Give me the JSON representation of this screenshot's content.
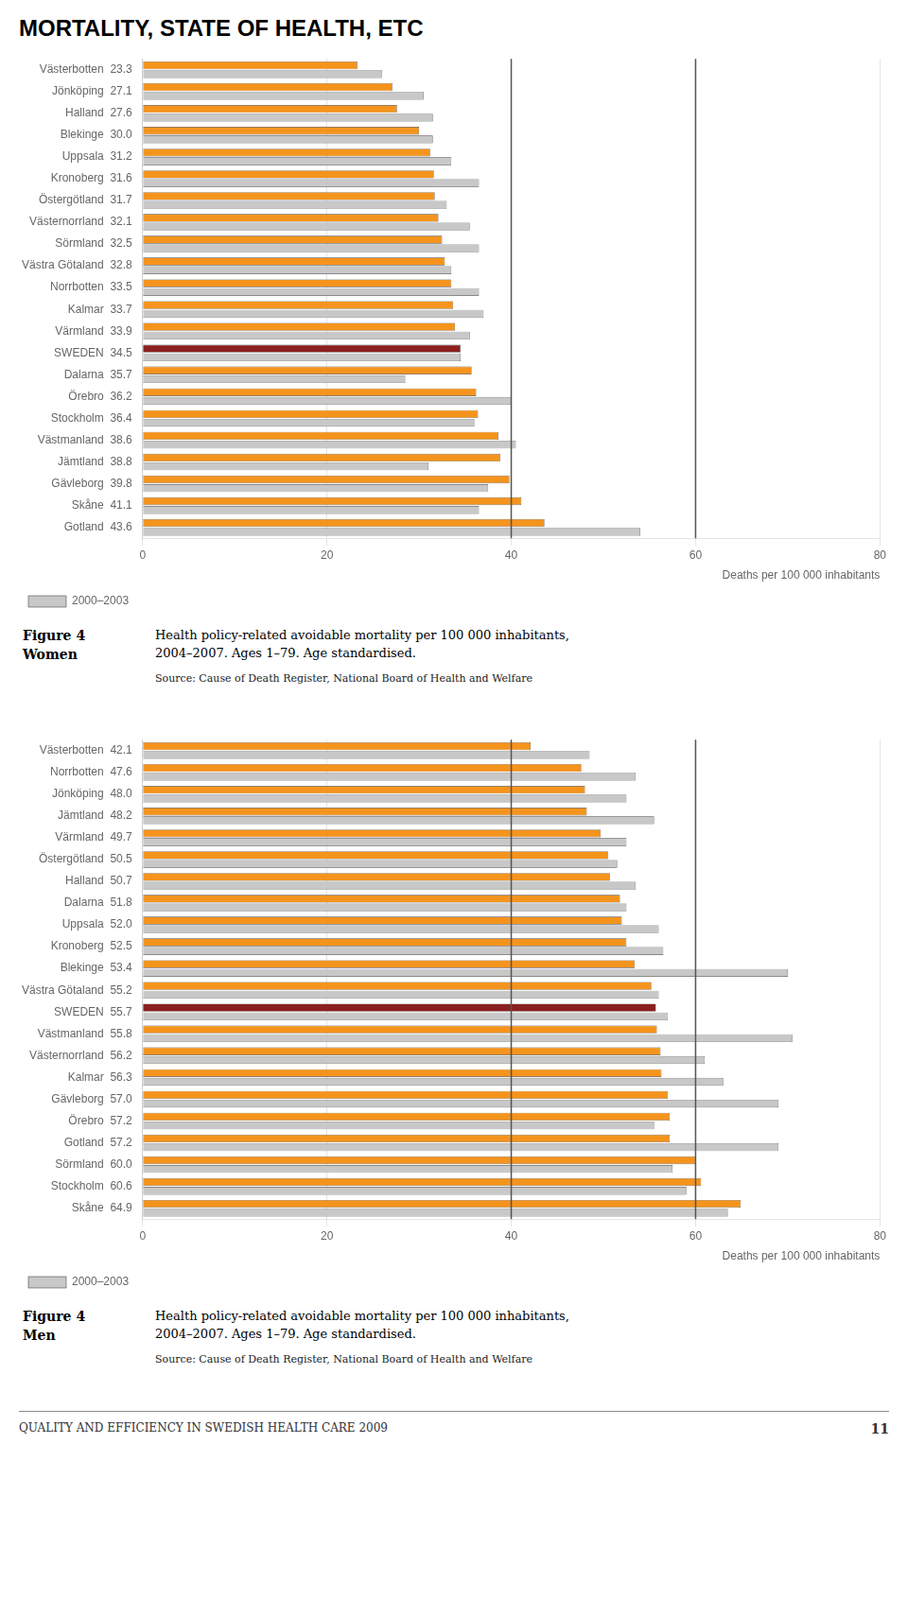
{
  "page_title": "MORTALITY, STATE OF HEALTH, ETC",
  "footer_text": "QUALITY AND EFFICIENCY IN SWEDISH HEALTH CARE 2009",
  "footer_right": "11",
  "chart_data": [
    {
      "type": "bar",
      "orientation": "horizontal",
      "annotations": [
        "Figure 4",
        "Women",
        "Health policy-related avoidable mortality per 100 000 inhabitants,\n2004–2007. Ages 1–79. Age standardised.",
        "Source: Cause of Death Register, National Board of Health and Welfare"
      ],
      "categories": [
        "Västerbotten  23.3",
        "Jönköping  27.1",
        "Halland  27.6",
        "Blekinge  30.0",
        "Uppsala  31.2",
        "Kronoberg  31.6",
        "Östergötland  31.7",
        "Västernorrland  32.1",
        "Sörmland  32.5",
        "Västra Götaland  32.8",
        "Norrbotten  33.5",
        "Kalmar  33.7",
        "Värmland  33.9",
        "SWEDEN  34.5",
        "Dalarna  35.7",
        "Örebro  36.2",
        "Stockholm  36.4",
        "Västmanland  38.6",
        "Jämtland  38.8",
        "Gävleborg  39.8",
        "Skåne  41.1",
        "Gotland  43.6"
      ],
      "series": [
        {
          "values": [
            23.3,
            27.1,
            27.6,
            30.0,
            31.2,
            31.6,
            31.7,
            32.1,
            32.5,
            32.8,
            33.5,
            33.7,
            33.9,
            34.5,
            35.7,
            36.2,
            36.4,
            38.6,
            38.8,
            39.8,
            41.1,
            43.6
          ],
          "colors": [
            "#f5941d",
            "#f5941d",
            "#f5941d",
            "#f5941d",
            "#f5941d",
            "#f5941d",
            "#f5941d",
            "#f5941d",
            "#f5941d",
            "#f5941d",
            "#f5941d",
            "#f5941d",
            "#f5941d",
            "#8b2020",
            "#f5941d",
            "#f5941d",
            "#f5941d",
            "#f5941d",
            "#f5941d",
            "#f5941d",
            "#f5941d",
            "#f5941d"
          ]
        },
        {
          "name": "2000–2003",
          "color": "#c8c8c8",
          "values": [
            26.0,
            30.5,
            31.5,
            31.5,
            33.5,
            36.5,
            33.0,
            35.5,
            36.5,
            33.5,
            36.5,
            37.0,
            35.5,
            34.5,
            28.5,
            40.0,
            36.0,
            40.5,
            31.0,
            37.5,
            36.5,
            54.0
          ]
        }
      ],
      "xlabel": "Deaths per 100 000 inhabitants",
      "xlim": [
        0,
        80
      ],
      "xticks": [
        0,
        20,
        40,
        60,
        80
      ],
      "grid": true,
      "legend": "lower left",
      "reference_lines": [
        {
          "x": 40,
          "color": "#555555"
        },
        {
          "x": 60,
          "color": "#555555"
        }
      ]
    },
    {
      "type": "bar",
      "orientation": "horizontal",
      "annotations": [
        "Figure 4",
        "Men",
        "Health policy-related avoidable mortality per 100 000 inhabitants,\n2004–2007. Ages 1–79. Age standardised.",
        "Source: Cause of Death Register, National Board of Health and Welfare"
      ],
      "categories": [
        "Västerbotten  42.1",
        "Norrbotten  47.6",
        "Jönköping  48.0",
        "Jämtland  48.2",
        "Värmland  49.7",
        "Östergötland  50.5",
        "Halland  50.7",
        "Dalarna  51.8",
        "Uppsala  52.0",
        "Kronoberg  52.5",
        "Blekinge  53.4",
        "Västra Götaland  55.2",
        "SWEDEN  55.7",
        "Västmanland  55.8",
        "Västernorrland  56.2",
        "Kalmar  56.3",
        "Gävleborg  57.0",
        "Örebro  57.2",
        "Gotland  57.2",
        "Sörmland  60.0",
        "Stockholm  60.6",
        "Skåne  64.9"
      ],
      "series": [
        {
          "values": [
            42.1,
            47.6,
            48.0,
            48.2,
            49.7,
            50.5,
            50.7,
            51.8,
            52.0,
            52.5,
            53.4,
            55.2,
            55.7,
            55.8,
            56.2,
            56.3,
            57.0,
            57.2,
            57.2,
            60.0,
            60.6,
            64.9
          ],
          "colors": [
            "#f5941d",
            "#f5941d",
            "#f5941d",
            "#f5941d",
            "#f5941d",
            "#f5941d",
            "#f5941d",
            "#f5941d",
            "#f5941d",
            "#f5941d",
            "#f5941d",
            "#f5941d",
            "#8b2020",
            "#f5941d",
            "#f5941d",
            "#f5941d",
            "#f5941d",
            "#f5941d",
            "#f5941d",
            "#f5941d",
            "#f5941d",
            "#f5941d"
          ]
        },
        {
          "name": "2000–2003",
          "color": "#c8c8c8",
          "values": [
            48.5,
            53.5,
            52.5,
            55.5,
            52.5,
            51.5,
            53.5,
            52.5,
            56.0,
            56.5,
            70.0,
            56.0,
            57.0,
            70.5,
            61.0,
            63.0,
            69.0,
            55.5,
            69.0,
            57.5,
            59.0,
            63.5
          ]
        }
      ],
      "xlabel": "Deaths per 100 000 inhabitants",
      "xlim": [
        0,
        80
      ],
      "xticks": [
        0,
        20,
        40,
        60,
        80
      ],
      "grid": true,
      "legend": "lower left",
      "reference_lines": [
        {
          "x": 40,
          "color": "#555555"
        },
        {
          "x": 60,
          "color": "#555555"
        }
      ]
    }
  ]
}
